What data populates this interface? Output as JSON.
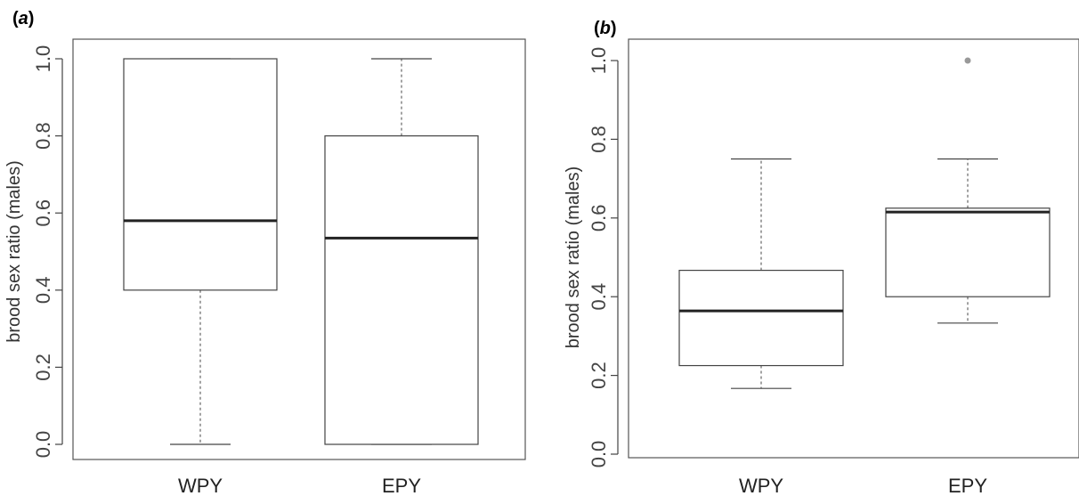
{
  "chart_data": [
    {
      "type": "box",
      "panel_label": "(a)",
      "ylabel": "brood sex ratio (males)",
      "ylim": [
        0,
        1
      ],
      "yticks": [
        "0.0",
        "0.2",
        "0.4",
        "0.6",
        "0.8",
        "1.0"
      ],
      "categories": [
        "WPY",
        "EPY"
      ],
      "boxes": [
        {
          "category": "WPY",
          "min": 0.0,
          "q1": 0.4,
          "median": 0.58,
          "q3": 1.0,
          "max": 1.0,
          "outliers": []
        },
        {
          "category": "EPY",
          "min": 0.0,
          "q1": 0.0,
          "median": 0.535,
          "q3": 0.8,
          "max": 1.0,
          "outliers": []
        }
      ]
    },
    {
      "type": "box",
      "panel_label": "(b)",
      "ylabel": "brood sex ratio (males)",
      "ylim": [
        0,
        1
      ],
      "yticks": [
        "0.0",
        "0.2",
        "0.4",
        "0.6",
        "0.8",
        "1.0"
      ],
      "categories": [
        "WPY",
        "EPY"
      ],
      "boxes": [
        {
          "category": "WPY",
          "min": 0.167,
          "q1": 0.225,
          "median": 0.364,
          "q3": 0.467,
          "max": 0.75,
          "outliers": []
        },
        {
          "category": "EPY",
          "min": 0.333,
          "q1": 0.4,
          "median": 0.615,
          "q3": 0.625,
          "max": 0.75,
          "outliers": [
            1.0
          ]
        }
      ]
    }
  ]
}
